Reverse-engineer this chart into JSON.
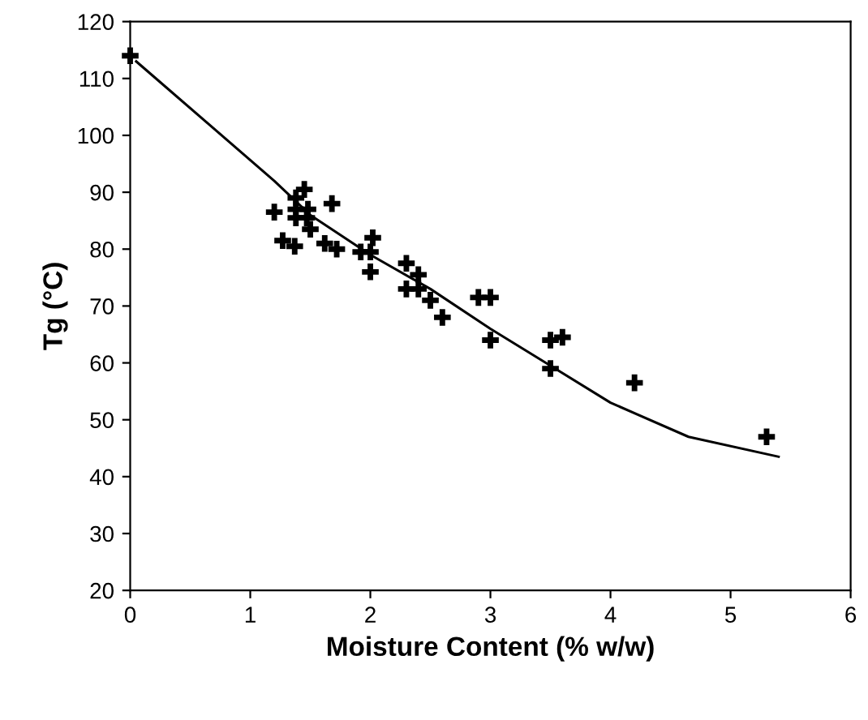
{
  "chart_data": {
    "type": "scatter",
    "xlabel": "Moisture Content (% w/w)",
    "ylabel": "Tg (°C)",
    "xlim": [
      0,
      6
    ],
    "ylim": [
      20,
      120
    ],
    "xticks": [
      0,
      1,
      2,
      3,
      4,
      5,
      6
    ],
    "yticks": [
      20,
      30,
      40,
      50,
      60,
      70,
      80,
      90,
      100,
      110,
      120
    ],
    "grid": false,
    "series": [
      {
        "color": "#000000",
        "marker": "cross",
        "x": [
          0.0,
          1.2,
          1.27,
          1.37,
          1.38,
          1.45,
          1.38,
          1.48,
          1.38,
          1.47,
          1.5,
          1.62,
          1.72,
          1.68,
          1.92,
          2.0,
          2.02,
          2.0,
          2.3,
          2.3,
          2.4,
          2.4,
          2.5,
          2.6,
          2.9,
          3.0,
          3.0,
          3.5,
          3.6,
          3.5,
          4.2,
          5.3
        ],
        "values": [
          114,
          86.5,
          81.5,
          80.5,
          89,
          90.5,
          87,
          87,
          85.5,
          85.5,
          83.5,
          81,
          80,
          88,
          79.5,
          79.5,
          82,
          76,
          77.5,
          73,
          73,
          75.5,
          71,
          68,
          71.5,
          71.5,
          64,
          64,
          64.5,
          59,
          56.5,
          47
        ]
      },
      {
        "type": "line",
        "color": "#000000",
        "marker": "none",
        "line_style": "solid",
        "x": [
          0.05,
          1.2,
          1.5,
          2.0,
          2.5,
          3.0,
          3.5,
          4.0,
          4.65,
          5.4
        ],
        "values": [
          113,
          92,
          86,
          79,
          73,
          66,
          59.5,
          53,
          47,
          43.5
        ]
      }
    ]
  }
}
